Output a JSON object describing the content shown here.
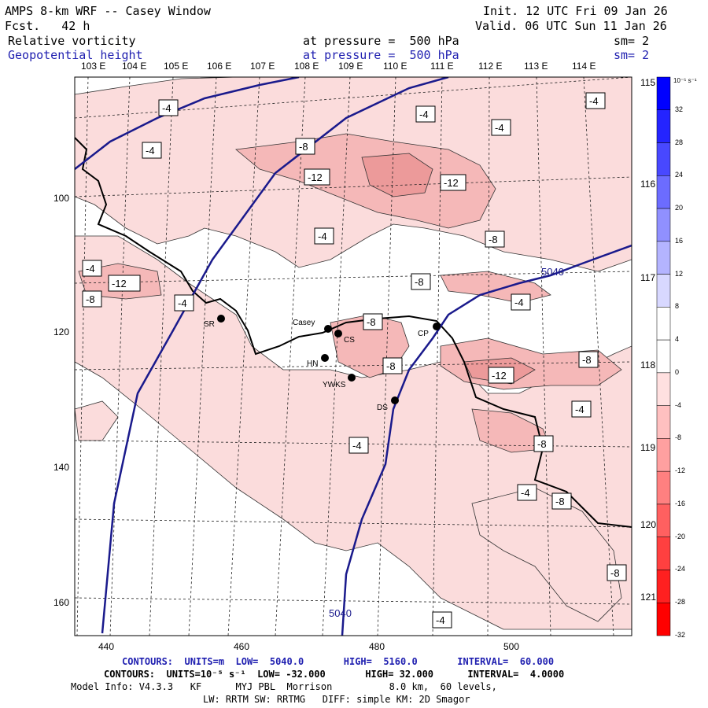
{
  "header": {
    "title": "AMPS 8-km WRF -- Casey Window",
    "forecast": "Fcst.   42 h",
    "init": "Init. 12 UTC Fri 09 Jan 26",
    "valid": "Valid. 06 UTC Sun 11 Jan 26",
    "field1_name": "Relative vorticity",
    "field1_level": "at pressure =  500 hPa",
    "field1_smooth": "sm= 2",
    "field2_name": "Geopotential height",
    "field2_level": "at pressure =  500 hPa",
    "field2_smooth": "sm= 2"
  },
  "lon_labels": [
    "103 E",
    "104 E",
    "105 E",
    "106 E",
    "107 E",
    "108 E",
    "109 E",
    "110 E",
    "111 E",
    "112 E",
    "113 E",
    "114 E"
  ],
  "lat_labels": [
    "115 E",
    "116 E",
    "117 E",
    "118 E",
    "119 E",
    "120 E",
    "121 E"
  ],
  "y_axis": [
    "100",
    "120",
    "140",
    "160"
  ],
  "x_axis": [
    "440",
    "460",
    "480",
    "500"
  ],
  "colorbar": {
    "unit": "10⁻⁵ s⁻¹",
    "ticks": [
      "32",
      "28",
      "24",
      "20",
      "16",
      "12",
      "8",
      "4",
      "0",
      "-4",
      "-8",
      "-12",
      "-16",
      "-20",
      "-24",
      "-28",
      "-32"
    ],
    "colors": [
      "#0000ff",
      "#2424ff",
      "#4848ff",
      "#6c6cff",
      "#9090ff",
      "#b4b4ff",
      "#d8d8ff",
      "#ffffff",
      "#ffffff",
      "#ffe0e0",
      "#ffc0c0",
      "#ffa0a0",
      "#ff8080",
      "#ff6060",
      "#ff4040",
      "#ff2020",
      "#ff0000"
    ],
    "accent_blue": "#1a1a8c",
    "accent_red": "#f5b8b8"
  },
  "contour_labels": {
    "height_1": "5040",
    "height_2": "5040",
    "vort": [
      "-4",
      "-4",
      "-4",
      "-4",
      "-4",
      "-8",
      "-12",
      "-12",
      "-4",
      "-8",
      "-12",
      "-4",
      "-8",
      "-4",
      "-8",
      "-4",
      "-8",
      "-8",
      "-12",
      "-8",
      "-4",
      "-4",
      "-8",
      "-4",
      "-8",
      "-8",
      "-4",
      "-8"
    ]
  },
  "stations": [
    "SR",
    "Casey",
    "CS",
    "HN",
    "YWKS",
    "DS",
    "CP"
  ],
  "footer": {
    "line1": "CONTOURS:  UNITS=m  LOW=  5040.0       HIGH=  5160.0       INTERVAL=  60.000",
    "line2": "CONTOURS:  UNITS=10⁻⁵ s⁻¹  LOW= -32.000       HIGH= 32.000      INTERVAL=  4.0000",
    "line3": "Model Info: V4.3.3   KF      MYJ PBL  Morrison          8.0 km,  60 levels,",
    "line4": "LW: RRTM SW: RRTMG   DIFF: simple KM: 2D Smagor"
  }
}
